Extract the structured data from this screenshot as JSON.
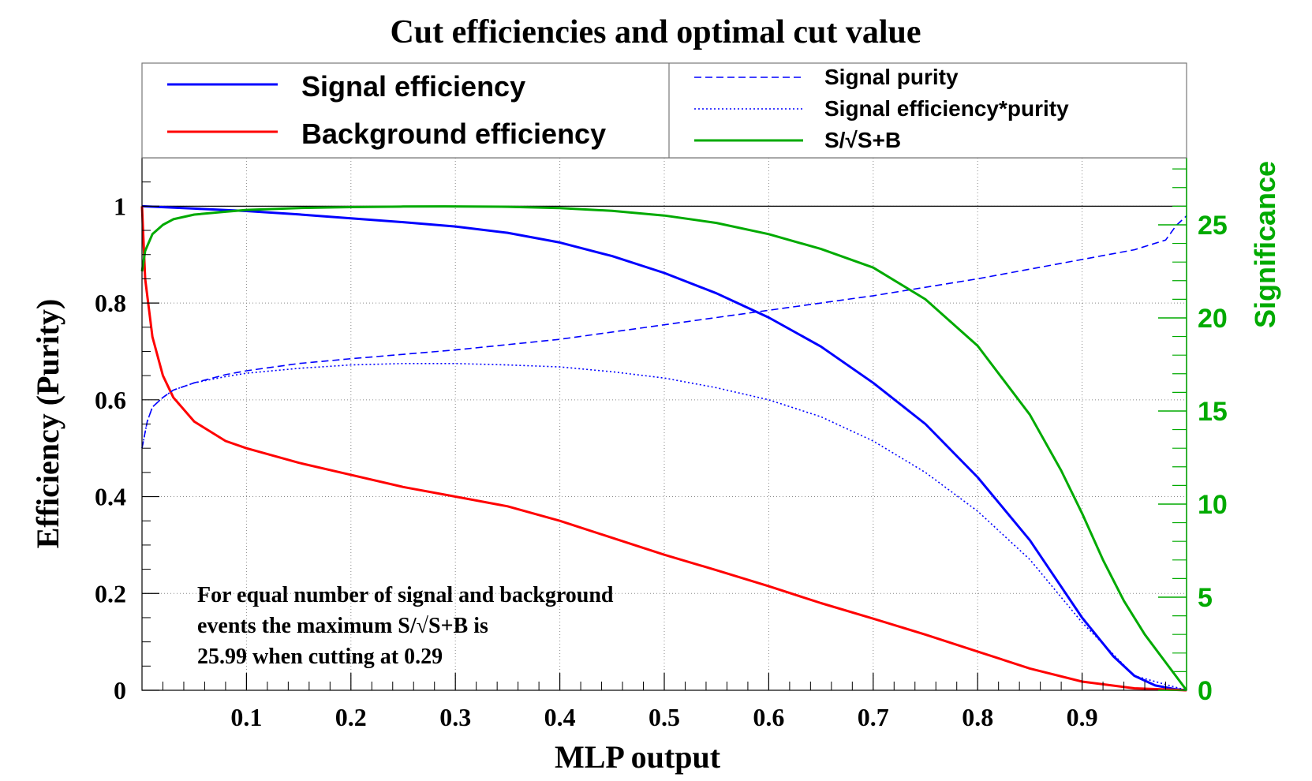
{
  "chart_data": {
    "type": "line",
    "title": "Cut efficiencies and optimal cut value",
    "xlabel": "MLP output",
    "ylabel": "Efficiency (Purity)",
    "y2label": "Significance",
    "xlim": [
      0,
      1
    ],
    "ylim": [
      0,
      1.1
    ],
    "y2lim": [
      0,
      28.6
    ],
    "grid": true,
    "x_ticks": [
      "0.1",
      "0.2",
      "0.3",
      "0.4",
      "0.5",
      "0.6",
      "0.7",
      "0.8",
      "0.9"
    ],
    "y_ticks": [
      "0",
      "0.2",
      "0.4",
      "0.6",
      "0.8",
      "1"
    ],
    "y2_ticks": [
      "0",
      "5",
      "10",
      "15",
      "20",
      "25"
    ],
    "legend_left": [
      "Signal efficiency",
      "Background efficiency"
    ],
    "legend_right": [
      "Signal purity",
      "Signal efficiency*purity",
      "S/√S+B"
    ],
    "annotation": {
      "line1": "For equal number of signal and background",
      "line2": "events the maximum S/√S+B is",
      "line3": "25.99 when cutting at  0.29"
    },
    "colors": {
      "signal": "#0000ff",
      "background": "#ff0000",
      "significance": "#00aa00"
    },
    "series": [
      {
        "name": "Signal efficiency",
        "axis": "left",
        "style": "solid",
        "x": [
          0,
          0.05,
          0.1,
          0.15,
          0.2,
          0.25,
          0.3,
          0.35,
          0.4,
          0.45,
          0.5,
          0.55,
          0.6,
          0.65,
          0.7,
          0.75,
          0.8,
          0.85,
          0.9,
          0.93,
          0.95,
          0.97,
          0.99,
          1.0
        ],
        "y": [
          1.0,
          0.995,
          0.99,
          0.983,
          0.975,
          0.967,
          0.958,
          0.945,
          0.925,
          0.897,
          0.862,
          0.82,
          0.77,
          0.71,
          0.635,
          0.55,
          0.44,
          0.31,
          0.15,
          0.07,
          0.03,
          0.01,
          0.002,
          0
        ]
      },
      {
        "name": "Background efficiency",
        "axis": "left",
        "style": "solid",
        "x": [
          0,
          0.003,
          0.01,
          0.02,
          0.03,
          0.05,
          0.08,
          0.1,
          0.15,
          0.2,
          0.25,
          0.3,
          0.35,
          0.4,
          0.45,
          0.5,
          0.55,
          0.6,
          0.65,
          0.7,
          0.75,
          0.8,
          0.85,
          0.9,
          0.95,
          1.0
        ],
        "y": [
          1.0,
          0.85,
          0.73,
          0.65,
          0.605,
          0.555,
          0.515,
          0.5,
          0.47,
          0.445,
          0.42,
          0.4,
          0.38,
          0.35,
          0.315,
          0.28,
          0.248,
          0.215,
          0.18,
          0.148,
          0.115,
          0.08,
          0.045,
          0.018,
          0.004,
          0
        ]
      },
      {
        "name": "Signal purity",
        "axis": "left",
        "style": "dashed",
        "x": [
          0,
          0.005,
          0.01,
          0.02,
          0.03,
          0.05,
          0.08,
          0.1,
          0.15,
          0.2,
          0.3,
          0.4,
          0.5,
          0.6,
          0.7,
          0.8,
          0.9,
          0.95,
          0.98,
          0.99,
          1.0
        ],
        "y": [
          0.5,
          0.555,
          0.585,
          0.605,
          0.62,
          0.635,
          0.652,
          0.66,
          0.675,
          0.685,
          0.703,
          0.725,
          0.755,
          0.785,
          0.815,
          0.85,
          0.89,
          0.91,
          0.93,
          0.96,
          0.98
        ]
      },
      {
        "name": "Signal efficiency*purity",
        "axis": "left",
        "style": "dotted",
        "x": [
          0,
          0.005,
          0.01,
          0.02,
          0.03,
          0.05,
          0.08,
          0.1,
          0.15,
          0.2,
          0.25,
          0.3,
          0.35,
          0.4,
          0.45,
          0.5,
          0.55,
          0.6,
          0.65,
          0.7,
          0.75,
          0.8,
          0.85,
          0.9,
          0.95,
          1.0
        ],
        "y": [
          0.5,
          0.555,
          0.585,
          0.605,
          0.62,
          0.635,
          0.648,
          0.655,
          0.665,
          0.672,
          0.675,
          0.675,
          0.672,
          0.668,
          0.658,
          0.645,
          0.625,
          0.6,
          0.565,
          0.515,
          0.45,
          0.37,
          0.27,
          0.14,
          0.03,
          0
        ]
      },
      {
        "name": "S/√S+B",
        "axis": "right",
        "style": "solid",
        "x": [
          0,
          0.003,
          0.01,
          0.02,
          0.03,
          0.05,
          0.08,
          0.1,
          0.15,
          0.2,
          0.25,
          0.29,
          0.35,
          0.4,
          0.45,
          0.5,
          0.55,
          0.6,
          0.65,
          0.7,
          0.75,
          0.8,
          0.85,
          0.88,
          0.9,
          0.92,
          0.94,
          0.96,
          0.98,
          1.0
        ],
        "y": [
          22.5,
          23.6,
          24.5,
          25.0,
          25.3,
          25.55,
          25.7,
          25.8,
          25.9,
          25.95,
          25.98,
          25.99,
          25.97,
          25.9,
          25.75,
          25.5,
          25.1,
          24.5,
          23.7,
          22.7,
          21.0,
          18.5,
          14.8,
          11.8,
          9.5,
          7.0,
          4.8,
          3.0,
          1.5,
          0
        ]
      }
    ]
  }
}
